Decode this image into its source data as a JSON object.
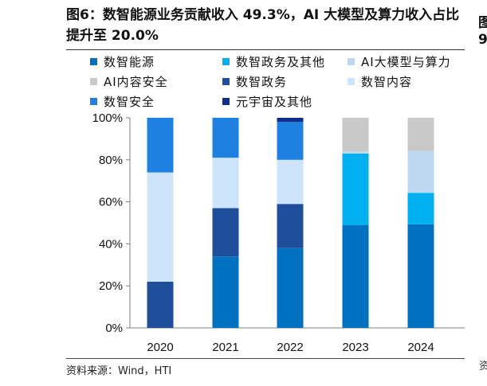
{
  "title": "图6：数智能源业务贡献收入 49.3%，AI 大模型及算力收入占比提升至 20.0%",
  "source": "资料来源：Wind，HTI",
  "edge_fragments": [
    "图",
    "9",
    "资"
  ],
  "colors": {
    "数智能源": "#0070C0",
    "数智政务及其他": "#00B0F0",
    "AI大模型与算力": "#BDD7EE",
    "AI内容安全": "#C9C9C9",
    "数智政务": "#1F4E9A",
    "数智内容": "#CDE4FA",
    "数智安全": "#1E80E0",
    "元宇宙及其他": "#0B2F8A"
  },
  "chart_data": {
    "type": "bar",
    "stacked": true,
    "categories": [
      "2020",
      "2021",
      "2022",
      "2023",
      "2024"
    ],
    "y_tick_labels": [
      "0%",
      "20%",
      "40%",
      "60%",
      "80%",
      "100%"
    ],
    "ylim": [
      0,
      100
    ],
    "grid": false,
    "legend_position": "top",
    "legend_order": [
      "数智能源",
      "数智政务及其他",
      "AI大模型与算力",
      "AI内容安全",
      "数智政务",
      "数智内容",
      "数智安全",
      "元宇宙及其他"
    ],
    "stack_order": [
      "数智能源",
      "数智政务",
      "数智内容",
      "数智安全",
      "元宇宙及其他",
      "数智政务及其他",
      "AI大模型与算力",
      "AI内容安全"
    ],
    "series": [
      {
        "name": "数智能源",
        "values": [
          0,
          34,
          38,
          49,
          49.3
        ]
      },
      {
        "name": "数智政务",
        "values": [
          22,
          23,
          21,
          0,
          0
        ]
      },
      {
        "name": "数智内容",
        "values": [
          52,
          24,
          21,
          0,
          0
        ]
      },
      {
        "name": "数智安全",
        "values": [
          26,
          19,
          18,
          0,
          0
        ]
      },
      {
        "name": "元宇宙及其他",
        "values": [
          0,
          0,
          2,
          0,
          0
        ]
      },
      {
        "name": "数智政务及其他",
        "values": [
          0,
          0,
          0,
          34,
          15
        ]
      },
      {
        "name": "AI大模型与算力",
        "values": [
          0,
          0,
          0,
          1,
          20
        ]
      },
      {
        "name": "AI内容安全",
        "values": [
          0,
          0,
          0,
          16,
          15.7
        ]
      }
    ]
  }
}
